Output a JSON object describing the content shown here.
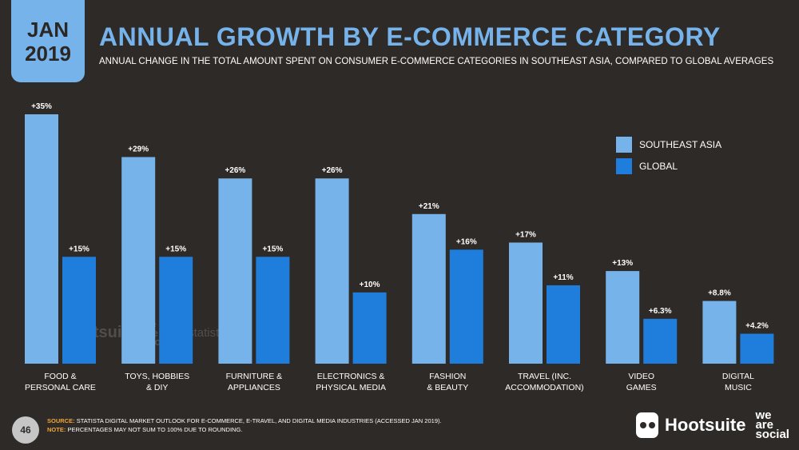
{
  "badge": {
    "month": "JAN",
    "year": "2019"
  },
  "title": "ANNUAL GROWTH BY E-COMMERCE CATEGORY",
  "subtitle": "ANNUAL CHANGE IN THE TOTAL AMOUNT SPENT ON CONSUMER E-COMMERCE CATEGORIES IN SOUTHEAST ASIA, COMPARED TO GLOBAL AVERAGES",
  "legend": [
    {
      "label": "SOUTHEAST ASIA",
      "color": "#76b3ea"
    },
    {
      "label": "GLOBAL",
      "color": "#1f7ddb"
    }
  ],
  "chart_data": {
    "type": "bar",
    "categories": [
      "FOOD &\nPERSONAL CARE",
      "TOYS, HOBBIES\n& DIY",
      "FURNITURE &\nAPPLIANCES",
      "ELECTRONICS &\nPHYSICAL MEDIA",
      "FASHION\n& BEAUTY",
      "TRAVEL (INC.\nACCOMMODATION)",
      "VIDEO\nGAMES",
      "DIGITAL\nMUSIC"
    ],
    "series": [
      {
        "name": "SOUTHEAST ASIA",
        "color": "#76b3ea",
        "values": [
          35,
          29,
          26,
          26,
          21,
          17,
          13,
          8.8
        ],
        "labels": [
          "+35%",
          "+29%",
          "+26%",
          "+26%",
          "+21%",
          "+17%",
          "+13%",
          "+8.8%"
        ]
      },
      {
        "name": "GLOBAL",
        "color": "#1f7ddb",
        "values": [
          15,
          15,
          15,
          10,
          16,
          11,
          6.3,
          4.2
        ],
        "labels": [
          "+15%",
          "+15%",
          "+15%",
          "+10%",
          "+16%",
          "+11%",
          "+6.3%",
          "+4.2%"
        ]
      }
    ],
    "ylim": [
      0,
      35
    ],
    "legend_position": "top-right",
    "grid": false
  },
  "watermark": {
    "hootsuite": "Hootsuite",
    "wearesocial": "we\nare\nsocial",
    "statista": "statista"
  },
  "footer": {
    "page_number": "46",
    "source_key": "SOURCE:",
    "source_text": "STATISTA DIGITAL MARKET OUTLOOK FOR E-COMMERCE, E-TRAVEL, AND DIGITAL MEDIA INDUSTRIES (ACCESSED JAN 2019).",
    "note_key": "NOTE:",
    "note_text": "PERCENTAGES MAY NOT SUM TO 100% DUE TO ROUNDING."
  },
  "brand": {
    "hootsuite": "Hootsuite",
    "wearesocial": "we\nare\nsocial"
  }
}
